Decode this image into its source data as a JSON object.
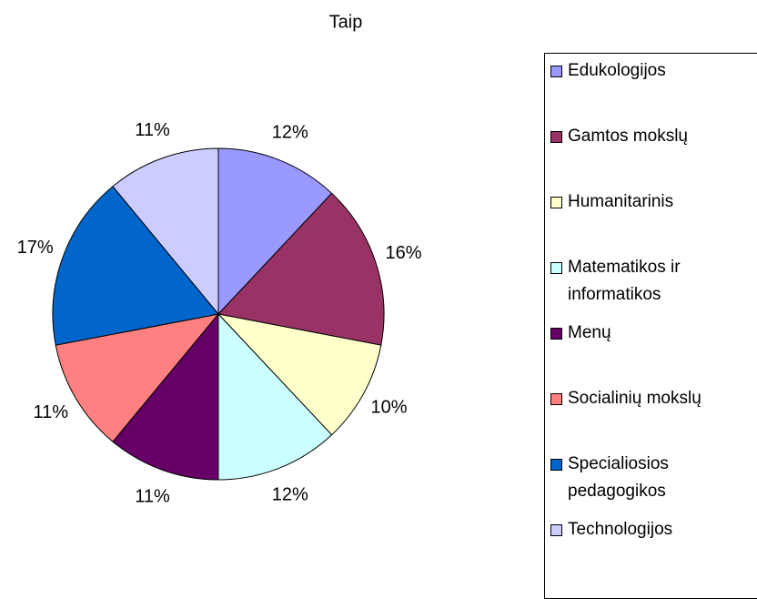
{
  "chart_data": {
    "type": "pie",
    "title": "Taip",
    "categories": [
      "Edukologijos",
      "Gamtos mokslų",
      "Humanitarinis",
      "Matematikos ir informatikos",
      "Menų",
      "Socialinių mokslų",
      "Specialiosios pedagogikos",
      "Technologijos"
    ],
    "values": [
      12,
      16,
      10,
      12,
      11,
      11,
      17,
      11
    ],
    "value_labels": [
      "12%",
      "16%",
      "10%",
      "12%",
      "11%",
      "11%",
      "17%",
      "11%"
    ],
    "colors": [
      "#9999ff",
      "#993366",
      "#ffffcc",
      "#ccffff",
      "#660066",
      "#ff8080",
      "#0066cc",
      "#ccccff"
    ],
    "legend": "right"
  }
}
